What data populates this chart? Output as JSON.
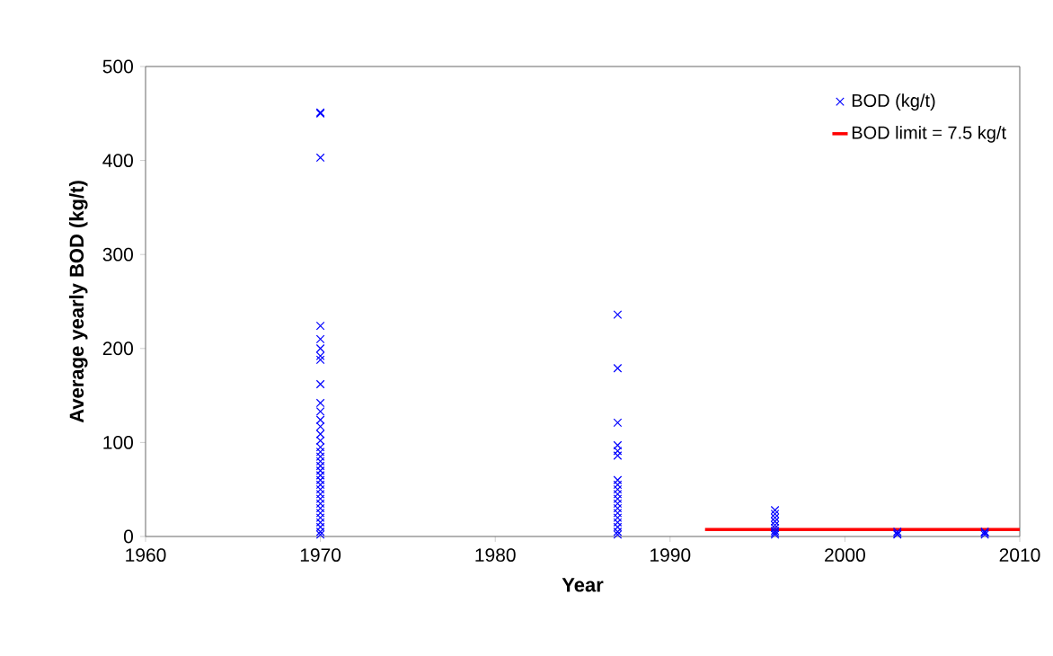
{
  "chart_data": {
    "type": "scatter",
    "xlabel": "Year",
    "ylabel": "Average yearly BOD (kg/t)",
    "xlim": [
      1960,
      2010
    ],
    "ylim": [
      0,
      500
    ],
    "xticks": [
      1960,
      1970,
      1980,
      1990,
      2000,
      2010
    ],
    "yticks": [
      0,
      100,
      200,
      300,
      400,
      500
    ],
    "legend": "top right",
    "marker": "cross",
    "series": [
      {
        "name": "BOD (kg/t)",
        "color": "#0000ff",
        "x": [
          1970,
          1970,
          1970,
          1970,
          1970,
          1970,
          1970,
          1970,
          1970,
          1970,
          1970,
          1970,
          1970,
          1970,
          1970,
          1970,
          1970,
          1970,
          1970,
          1970,
          1970,
          1970,
          1970,
          1970,
          1970,
          1970,
          1970,
          1970,
          1970,
          1970,
          1970,
          1970,
          1970,
          1970,
          1970,
          1987,
          1987,
          1987,
          1987,
          1987,
          1987,
          1987,
          1987,
          1987,
          1987,
          1987,
          1987,
          1987,
          1987,
          1987,
          1987,
          1987,
          1987,
          1987,
          1996,
          1996,
          1996,
          1996,
          1996,
          1996,
          1996,
          1996,
          1996,
          2003,
          2003,
          2003,
          2008,
          2008,
          2008
        ],
        "values": [
          451,
          450,
          403,
          224,
          210,
          200,
          192,
          188,
          162,
          142,
          133,
          124,
          117,
          109,
          102,
          95,
          90,
          85,
          80,
          75,
          70,
          65,
          60,
          55,
          50,
          45,
          40,
          35,
          30,
          25,
          20,
          15,
          10,
          5,
          2,
          236,
          179,
          121,
          97,
          91,
          86,
          60,
          55,
          50,
          45,
          40,
          35,
          30,
          25,
          20,
          15,
          10,
          5,
          2,
          28,
          24,
          20,
          16,
          12,
          9,
          6,
          4,
          2,
          5,
          3,
          2,
          5,
          4,
          2
        ]
      },
      {
        "name": "BOD limit = 7.5 kg/t",
        "type": "line",
        "color": "#ff0000",
        "marker": "none",
        "x": [
          1992,
          2010
        ],
        "values": [
          7.5,
          7.5
        ]
      }
    ]
  }
}
